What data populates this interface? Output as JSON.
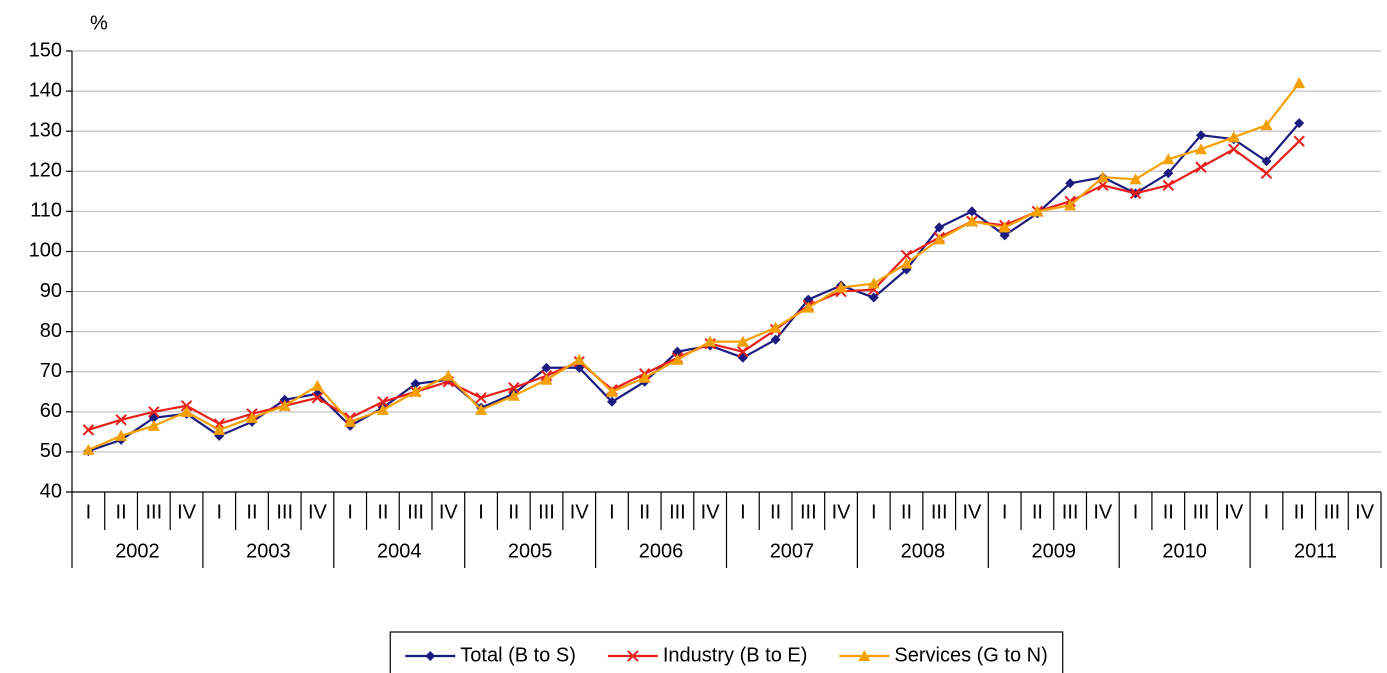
{
  "chart_data": {
    "type": "line",
    "y_label": "%",
    "categories": [
      "I",
      "II",
      "III",
      "IV",
      "I",
      "II",
      "III",
      "IV",
      "I",
      "II",
      "III",
      "IV",
      "I",
      "II",
      "III",
      "IV",
      "I",
      "II",
      "III",
      "IV",
      "I",
      "II",
      "III",
      "IV",
      "I",
      "II",
      "III",
      "IV",
      "I",
      "II",
      "III",
      "IV",
      "I",
      "II",
      "III",
      "IV",
      "I",
      "II",
      "III",
      "IV"
    ],
    "years": [
      "2002",
      "2003",
      "2004",
      "2005",
      "2006",
      "2007",
      "2008",
      "2009",
      "2010",
      "2011"
    ],
    "ylim": [
      40,
      150
    ],
    "yticks": [
      40,
      50,
      60,
      70,
      80,
      90,
      100,
      110,
      120,
      130,
      140,
      150
    ],
    "grid": true,
    "legend": "bottom",
    "series": [
      {
        "name": "Total (B to S)",
        "color": "#1c1c80",
        "marker": "diamond",
        "values": [
          50.2,
          53,
          58.5,
          59.5,
          54,
          57.5,
          63,
          64.5,
          56.5,
          61,
          67,
          68,
          61,
          64.5,
          71,
          71,
          62.5,
          67.5,
          75,
          76.5,
          73.5,
          78,
          88,
          91.5,
          88.5,
          95.5,
          106,
          110,
          104,
          109.5,
          117,
          118.5,
          114.5,
          119.5,
          129,
          128,
          122.5,
          132,
          null,
          null
        ]
      },
      {
        "name": "Industry (B to E)",
        "color": "#e8201c",
        "marker": "x",
        "values": [
          55.5,
          58,
          60,
          61.5,
          57,
          59.5,
          61.5,
          63.5,
          58.5,
          62.5,
          65,
          67.5,
          63.5,
          66,
          69,
          72.5,
          65.5,
          69.5,
          73.5,
          77,
          75,
          80.5,
          86.5,
          90,
          90.5,
          99,
          103.5,
          107.5,
          106.5,
          110,
          112.5,
          116.5,
          114.5,
          116.5,
          121,
          125.5,
          119.5,
          127.5,
          null,
          null
        ]
      },
      {
        "name": "Services (G to N)",
        "color": "#f5a000",
        "marker": "triangle",
        "values": [
          50.5,
          54,
          56.5,
          60,
          55.5,
          58.5,
          61.5,
          66.5,
          57.5,
          60.5,
          65,
          69,
          60.5,
          64,
          68,
          73,
          65,
          68.5,
          73,
          77.5,
          77.5,
          81,
          86,
          91,
          92,
          97,
          103,
          107.5,
          106,
          110,
          111.5,
          118.5,
          118,
          123,
          125.5,
          128.5,
          131.5,
          142,
          null,
          null
        ]
      }
    ]
  }
}
